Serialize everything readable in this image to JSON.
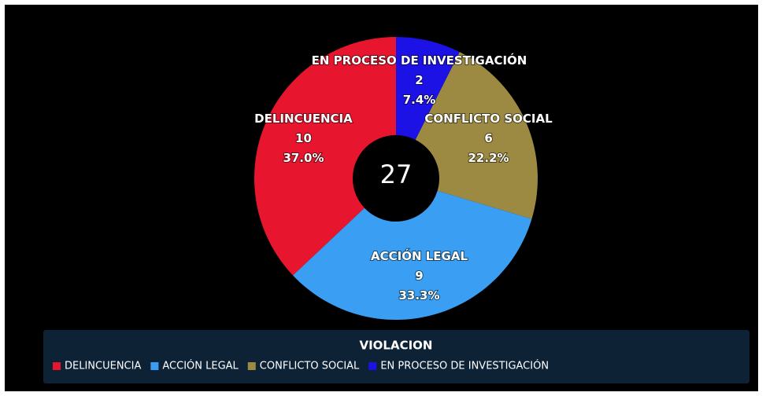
{
  "chart_data": {
    "type": "donut",
    "legend_title": "VIOLACION",
    "categories": [
      "DELINCUENCIA",
      "ACCIÓN LEGAL",
      "CONFLICTO SOCIAL",
      "EN PROCESO DE INVESTIGACIÓN"
    ],
    "values": [
      10,
      9,
      6,
      2
    ],
    "colors": [
      "#e8152e",
      "#3a9ff2",
      "#9c8a42",
      "#1c12e6"
    ],
    "percentages": [
      37.0,
      33.3,
      22.2,
      7.4
    ],
    "percentage_labels": [
      "37.0%",
      "33.3%",
      "22.2%",
      "7.4%"
    ],
    "total": 27,
    "legend_position": "bottom"
  }
}
